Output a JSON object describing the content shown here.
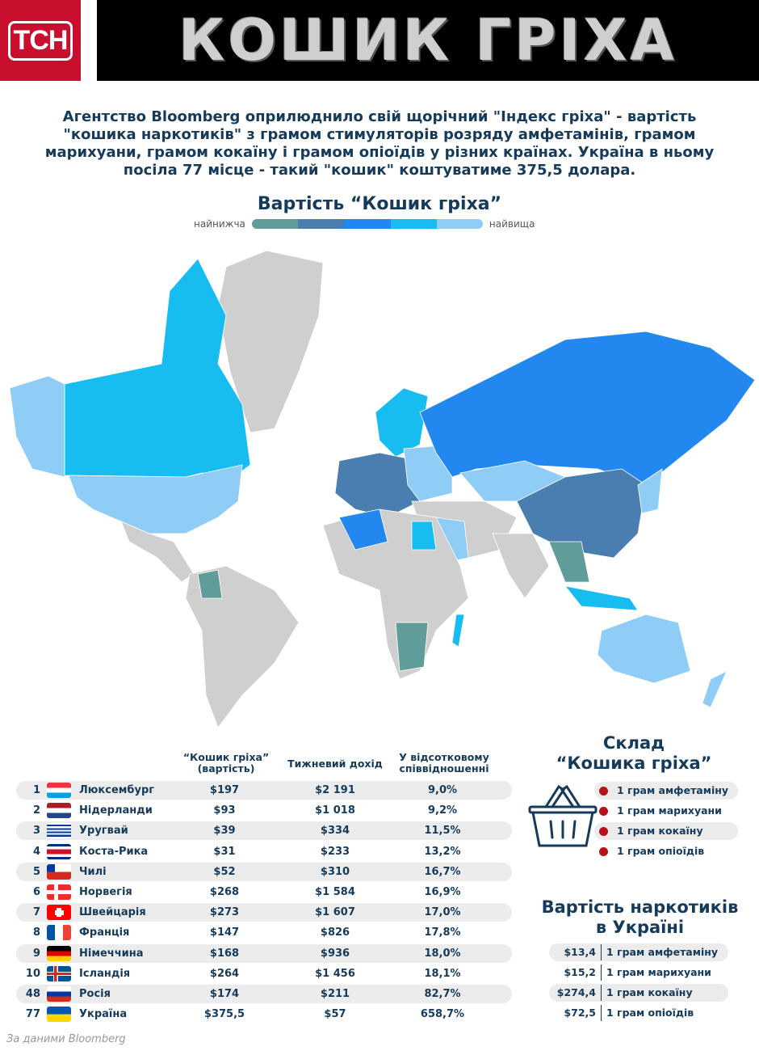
{
  "header": {
    "logo": "ТСН",
    "title": "Кошик гріха"
  },
  "intro": "Агентство Bloomberg оприлюднило свій щорічний \"Індекс гріха\" - вартість \"кошика наркотиків\" з грамом стимуляторів розряду амфетамінів, грамом марихуани, грамом кокаїну і грамом опіоїдів у різних країнах. Україна в ньому посіла 77 місце - такий \"кошик\" коштуватиме 375,5 долара.",
  "map": {
    "title": "Вартість “Кошик гріха”",
    "legend_low": "найнижча",
    "legend_high": "найвища",
    "scale_colors": [
      "#5f9c9a",
      "#4a7db0",
      "#2288f0",
      "#17bdf0",
      "#8fcdf7"
    ],
    "no_data_color": "#cfcfcf"
  },
  "table": {
    "headers": [
      "“Кошик гріха” (вартість)",
      "Тижневий дохід",
      "У відсотковому співвідношенні"
    ],
    "rows": [
      {
        "rank": "1",
        "country": "Люксембург",
        "flag": "luxembourg",
        "cost": "$197",
        "income": "$2 191",
        "pct": "9,0%"
      },
      {
        "rank": "2",
        "country": "Нідерланди",
        "flag": "netherlands",
        "cost": "$93",
        "income": "$1 018",
        "pct": "9,2%"
      },
      {
        "rank": "3",
        "country": "Уругвай",
        "flag": "uruguay",
        "cost": "$39",
        "income": "$334",
        "pct": "11,5%"
      },
      {
        "rank": "4",
        "country": "Коста-Рика",
        "flag": "costa-rica",
        "cost": "$31",
        "income": "$233",
        "pct": "13,2%"
      },
      {
        "rank": "5",
        "country": "Чилі",
        "flag": "chile",
        "cost": "$52",
        "income": "$310",
        "pct": "16,7%"
      },
      {
        "rank": "6",
        "country": "Норвегія",
        "flag": "norway",
        "cost": "$268",
        "income": "$1 584",
        "pct": "16,9%"
      },
      {
        "rank": "7",
        "country": "Швейцарія",
        "flag": "switzerland",
        "cost": "$273",
        "income": "$1 607",
        "pct": "17,0%"
      },
      {
        "rank": "8",
        "country": "Франція",
        "flag": "france",
        "cost": "$147",
        "income": "$826",
        "pct": "17,8%"
      },
      {
        "rank": "9",
        "country": "Німеччина",
        "flag": "germany",
        "cost": "$168",
        "income": "$936",
        "pct": "18,0%"
      },
      {
        "rank": "10",
        "country": "Ісландія",
        "flag": "iceland",
        "cost": "$264",
        "income": "$1 456",
        "pct": "18,1%"
      },
      {
        "rank": "48",
        "country": "Росія",
        "flag": "russia",
        "cost": "$174",
        "income": "$211",
        "pct": "82,7%"
      },
      {
        "rank": "77",
        "country": "Україна",
        "flag": "ukraine",
        "cost": "$375,5",
        "income": "$57",
        "pct": "658,7%"
      }
    ]
  },
  "source": "За даними Bloomberg",
  "basket": {
    "title_line1": "Склад",
    "title_line2": "“Кошика гріха”",
    "items": [
      "1 грам амфетаміну",
      "1 грам марихуани",
      "1 грам кокаїну",
      "1 грам опіоїдів"
    ],
    "bullet_color": "#b5121b"
  },
  "ukraine_prices": {
    "title_line1": "Вартість наркотиків",
    "title_line2": "в Україні",
    "items": [
      {
        "price": "$13,4",
        "label": "1 грам амфетаміну"
      },
      {
        "price": "$15,2",
        "label": "1 грам марихуани"
      },
      {
        "price": "$274,4",
        "label": "1 грам кокаїну"
      },
      {
        "price": "$72,5",
        "label": "1 грам опіоїдів"
      }
    ]
  }
}
